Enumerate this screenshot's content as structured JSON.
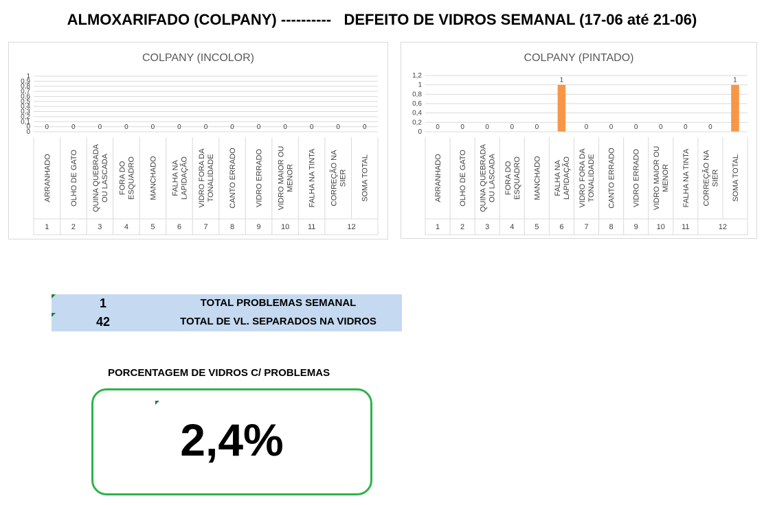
{
  "header": {
    "title": "ALMOXARIFADO (COLPANY) ----------   DEFEITO DE VIDROS SEMANAL (17-06 até 21-06)"
  },
  "chart_data": [
    {
      "type": "bar",
      "title": "COLPANY (INCOLOR)",
      "categories": [
        "ARRANHADO",
        "OLHO DE GATO",
        "QUINA QUEBRADA OU LASCADA",
        "FORA DO ESQUADRO",
        "MANCHADO",
        "FALHA NA LAPIDAÇÃO",
        "VIDRO FORA DA TONALIDADE",
        "CANTO ERRADO",
        "VIDRO ERRADO",
        "VIDRO MAIOR OU MENOR",
        "FALHA NA TINTA",
        "CORREÇÃO NA SIER",
        "SOMA TOTAL"
      ],
      "category_numbers": [
        "1",
        "2",
        "3",
        "4",
        "5",
        "6",
        "7",
        "8",
        "9",
        "10",
        "11",
        "12"
      ],
      "values": [
        0,
        0,
        0,
        0,
        0,
        0,
        0,
        0,
        0,
        0,
        0,
        0,
        0
      ],
      "data_labels": [
        "0",
        "0",
        "0",
        "0",
        "0",
        "0",
        "0",
        "0",
        "0",
        "0",
        "0",
        "0",
        "0"
      ],
      "yticks": [
        "0",
        "0",
        "0,1",
        "0,2",
        "0,3",
        "0,4",
        "0,5",
        "0,6",
        "0,7",
        "0,8",
        "0,9",
        "1"
      ],
      "ylim": [
        0,
        1
      ],
      "bar_color": "#f79646",
      "grid": true
    },
    {
      "type": "bar",
      "title": "COLPANY (PINTADO)",
      "categories": [
        "ARRANHADO",
        "OLHO DE GATO",
        "QUINA QUEBRADA OU LASCADA",
        "FORA DO ESQUADRO",
        "MANCHADO",
        "FALHA NA LAPIDAÇÃO",
        "VIDRO FORA DA TONALIDADE",
        "CANTO ERRADO",
        "VIDRO ERRADO",
        "VIDRO MAIOR OU MENOR",
        "FALHA NA TINTA",
        "CORREÇÃO NA SIER",
        "SOMA TOTAL"
      ],
      "category_numbers": [
        "1",
        "2",
        "3",
        "4",
        "5",
        "6",
        "7",
        "8",
        "9",
        "10",
        "11",
        "12"
      ],
      "values": [
        0,
        0,
        0,
        0,
        0,
        1,
        0,
        0,
        0,
        0,
        0,
        0,
        1
      ],
      "data_labels": [
        "0",
        "0",
        "0",
        "0",
        "0",
        "1",
        "0",
        "0",
        "0",
        "0",
        "0",
        "0",
        "1"
      ],
      "yticks": [
        "0",
        "0,2",
        "0,4",
        "0,6",
        "0,8",
        "1",
        "1,2"
      ],
      "ylim": [
        0,
        1.2
      ],
      "bar_color": "#f79646",
      "grid": true
    }
  ],
  "summary": {
    "rows": [
      {
        "value": "1",
        "label": "TOTAL PROBLEMAS SEMANAL"
      },
      {
        "value": "42",
        "label": "TOTAL DE VL. SEPARADOS NA VIDROS"
      }
    ],
    "background": "#c5d9f1"
  },
  "percentage": {
    "title": "PORCENTAGEM DE VIDROS C/ PROBLEMAS",
    "value": "2,4%",
    "border_color": "#2db34a"
  }
}
